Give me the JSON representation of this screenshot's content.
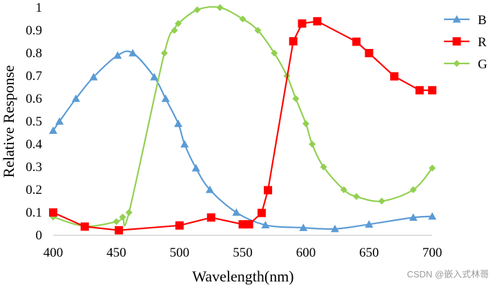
{
  "chart_data": {
    "type": "line",
    "title": "",
    "xlabel": "Wavelength(nm)",
    "ylabel": "Relative Response",
    "xlim": [
      400,
      700
    ],
    "ylim": [
      0,
      1
    ],
    "xticks": [
      400,
      450,
      500,
      550,
      600,
      650,
      700
    ],
    "yticks": [
      0,
      0.1,
      0.2,
      0.3,
      0.4,
      0.5,
      0.6,
      0.7,
      0.8,
      0.9,
      1
    ],
    "yticklabels": [
      "0",
      "0.1",
      "0.2",
      "0.3",
      "0.4",
      "0.5",
      "0.6",
      "0.7",
      "0.8",
      "0.9",
      "1"
    ],
    "grid": false,
    "legend_position": "right",
    "series": [
      {
        "name": "B",
        "color": "#5b9bd5",
        "marker": "triangle",
        "points": [
          [
            400,
            0.46
          ],
          [
            405,
            0.5
          ],
          [
            418,
            0.6
          ],
          [
            432,
            0.695
          ],
          [
            451,
            0.79
          ],
          [
            463,
            0.8
          ],
          [
            480,
            0.695
          ],
          [
            489,
            0.6
          ],
          [
            499,
            0.49
          ],
          [
            504,
            0.4
          ],
          [
            513,
            0.295
          ],
          [
            524,
            0.2
          ],
          [
            545,
            0.1
          ],
          [
            568,
            0.045
          ],
          [
            598,
            0.033
          ],
          [
            623,
            0.028
          ],
          [
            650,
            0.048
          ],
          [
            685,
            0.078
          ],
          [
            700,
            0.083
          ]
        ]
      },
      {
        "name": "R",
        "color": "#ff0000",
        "marker": "square",
        "points": [
          [
            400,
            0.1
          ],
          [
            425,
            0.038
          ],
          [
            452,
            0.022
          ],
          [
            500,
            0.043
          ],
          [
            525,
            0.078
          ],
          [
            550,
            0.048
          ],
          [
            555,
            0.048
          ],
          [
            565,
            0.098
          ],
          [
            570,
            0.198
          ],
          [
            590,
            0.852
          ],
          [
            597,
            0.93
          ],
          [
            609,
            0.94
          ],
          [
            640,
            0.85
          ],
          [
            650,
            0.8
          ],
          [
            670,
            0.698
          ],
          [
            690,
            0.637
          ],
          [
            700,
            0.637
          ]
        ]
      },
      {
        "name": "G",
        "color": "#92d050",
        "marker": "diamond",
        "points": [
          [
            400,
            0.08
          ],
          [
            425,
            0.04
          ],
          [
            450,
            0.06
          ],
          [
            455,
            0.08
          ],
          [
            460,
            0.1
          ],
          [
            488,
            0.8
          ],
          [
            496,
            0.9
          ],
          [
            499,
            0.93
          ],
          [
            514,
            0.99
          ],
          [
            532,
            1.0
          ],
          [
            550,
            0.95
          ],
          [
            562,
            0.9
          ],
          [
            575,
            0.8
          ],
          [
            585,
            0.7
          ],
          [
            592,
            0.6
          ],
          [
            600,
            0.49
          ],
          [
            605,
            0.4
          ],
          [
            614,
            0.3
          ],
          [
            630,
            0.2
          ],
          [
            640,
            0.17
          ],
          [
            660,
            0.15
          ],
          [
            685,
            0.2
          ],
          [
            700,
            0.295
          ]
        ]
      }
    ]
  },
  "watermark": "CSDN @嵌入式林哥"
}
